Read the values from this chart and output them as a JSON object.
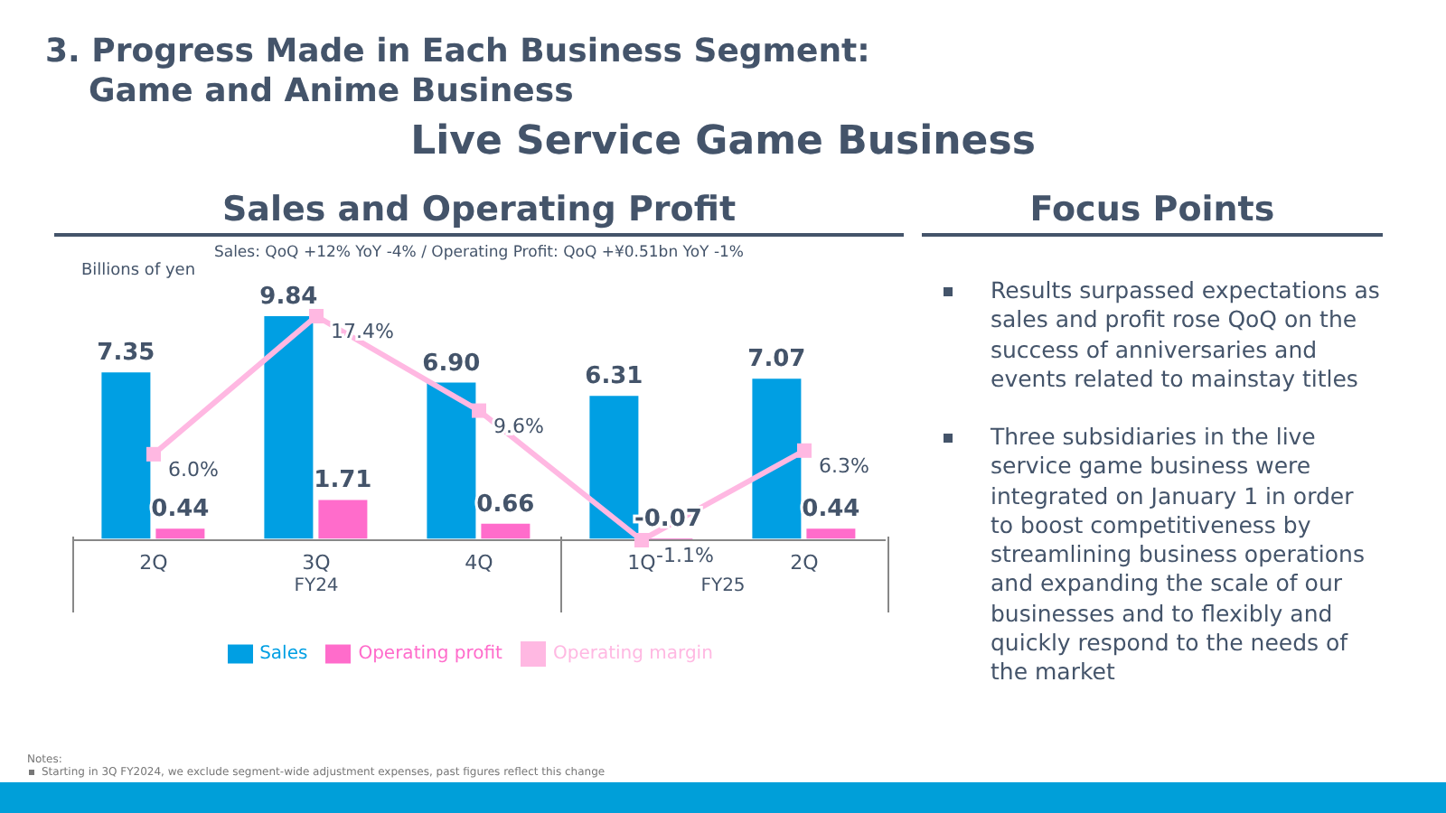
{
  "chart_data": [
    {
      "type": "bar",
      "title": "Sales and Operating Profit",
      "subtitle": "Sales: QoQ +12% YoY -4% / Operating Profit: QoQ +¥0.51bn YoY -1%",
      "ylabel": "Billions of yen",
      "categories": [
        "2Q",
        "3Q",
        "4Q",
        "1Q",
        "2Q"
      ],
      "series": [
        {
          "name": "Sales",
          "color": "#009fe3",
          "values": [
            7.35,
            9.84,
            6.9,
            6.31,
            7.07
          ],
          "value_labels": [
            "7.35",
            "9.84",
            "6.90",
            "6.31",
            "7.07"
          ]
        },
        {
          "name": "Operating profit",
          "color": "#ff6ccb",
          "values": [
            0.44,
            1.71,
            0.66,
            -0.07,
            0.44
          ],
          "value_labels": [
            "0.44",
            "1.71",
            "0.66",
            "-0.07",
            "0.44"
          ]
        },
        {
          "name": "Operating margin",
          "type": "line",
          "axis": "y2",
          "color": "#ffb8e2",
          "marker": "square",
          "values": [
            6.0,
            17.4,
            9.6,
            -1.1,
            6.3
          ],
          "value_labels": [
            "6.0%",
            "17.4%",
            "9.6%",
            "-1.1%",
            "6.3%"
          ]
        }
      ],
      "tick_labels": "x",
      "legend": "bottom",
      "grid": false,
      "annotations": [
        "FY24",
        "FY25",
        "3. Progress Made in Each Business Segment:\nGame and Anime Business",
        "Live Service Game Business",
        "Notes:",
        "Starting in 3Q FY2024, we exclude segment-wide adjustment expenses, past figures reflect this change"
      ]
    },
    {
      "type": "other",
      "title": "Focus Points",
      "annotations": [
        "Results surpassed expectations as sales and profit rose QoQ on the success of anniversaries and events related to mainstay titles",
        "Three subsidiaries in the live service game business were integrated on January 1 in order to boost competitiveness by streamlining business operations and expanding the scale of our businesses and to flexibly and quickly respond to the needs of the market"
      ]
    }
  ]
}
